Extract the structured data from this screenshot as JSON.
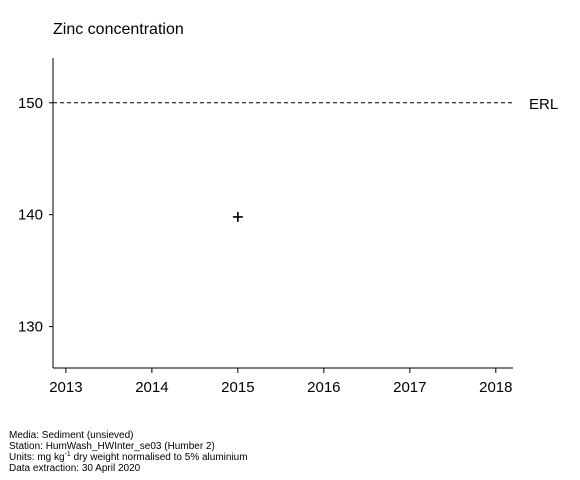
{
  "chart_data": {
    "type": "scatter",
    "title": "Zinc concentration",
    "xlabel": "",
    "ylabel": "",
    "xlim": [
      2012.85,
      2018.2
    ],
    "ylim": [
      126.3,
      154
    ],
    "x_ticks": [
      2013,
      2014,
      2015,
      2016,
      2017,
      2018
    ],
    "y_ticks": [
      130,
      140,
      150
    ],
    "grid": false,
    "marker": "+",
    "series": [
      {
        "x": [
          2015
        ],
        "y": [
          139.8
        ]
      }
    ],
    "reference_lines": [
      {
        "label": "ERL",
        "y": 150,
        "style": "dashed"
      }
    ]
  },
  "footer": {
    "media": "Media: Sediment (unsieved)",
    "station": "Station: HumWash_HWInter_se03 (Humber 2)",
    "units_prefix": "Units:  mg kg",
    "units_sup": "-1",
    "units_suffix": " dry weight normalised to 5% aluminium",
    "extraction": "Data extraction: 30 April 2020"
  }
}
